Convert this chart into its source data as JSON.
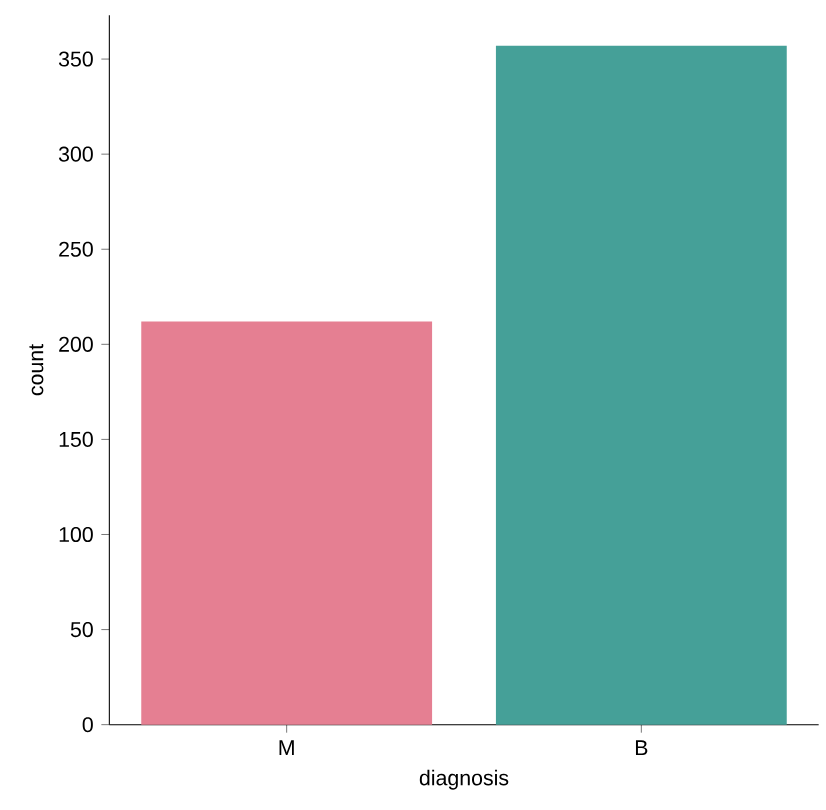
{
  "chart_data": {
    "type": "bar",
    "xlabel": "diagnosis",
    "ylabel": "count",
    "categories": [
      "M",
      "B"
    ],
    "values": [
      212,
      357
    ],
    "colors": [
      "#e57f92",
      "#45a098"
    ],
    "ylim": [
      0,
      373
    ],
    "yticks": [
      0,
      50,
      100,
      150,
      200,
      250,
      300,
      350
    ],
    "grid": false
  }
}
